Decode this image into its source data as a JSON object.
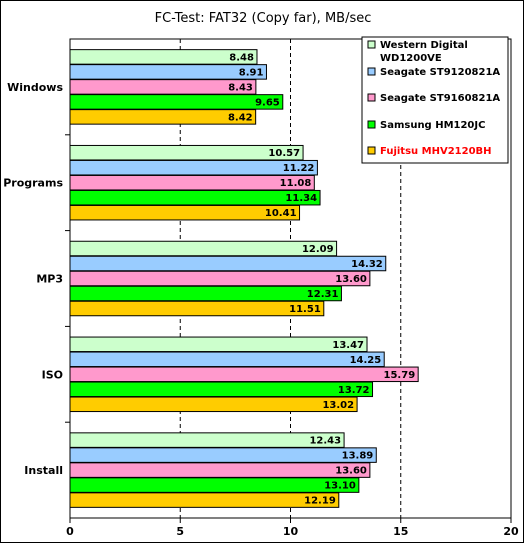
{
  "chart_data": {
    "type": "bar",
    "orientation": "horizontal",
    "title": "FC-Test: FAT32 (Copy far), MB/sec",
    "categories": [
      "Windows",
      "Programs",
      "MP3",
      "ISO",
      "Install"
    ],
    "series": [
      {
        "name": "Western Digital WD1200VE",
        "name_lines": [
          "Western Digital",
          "WD1200VE"
        ],
        "color": "#ccffcc",
        "values": [
          8.48,
          10.57,
          12.09,
          13.47,
          12.43
        ]
      },
      {
        "name": "Seagate ST9120821A",
        "name_lines": [
          "Seagate ST9120821A"
        ],
        "color": "#99ccff",
        "values": [
          8.91,
          11.22,
          14.32,
          14.25,
          13.89
        ]
      },
      {
        "name": "Seagate ST9160821A",
        "name_lines": [
          "Seagate ST9160821A"
        ],
        "color": "#ff99cc",
        "values": [
          8.43,
          11.08,
          13.6,
          15.79,
          13.6
        ]
      },
      {
        "name": "Samsung HM120JC",
        "name_lines": [
          "Samsung HM120JC"
        ],
        "color": "#00ff00",
        "values": [
          9.65,
          11.34,
          12.31,
          13.72,
          13.1
        ]
      },
      {
        "name": "Fujitsu MHV2120BH",
        "name_lines": [
          "Fujitsu MHV2120BH"
        ],
        "color": "#ffcc00",
        "text_color": "#ff0000",
        "values": [
          8.42,
          10.41,
          11.51,
          13.02,
          12.19
        ]
      }
    ],
    "value_labels": [
      [
        "8.48",
        "10.57",
        "12.09",
        "13.47",
        "12.43"
      ],
      [
        "8.91",
        "11.22",
        "14.32",
        "14.25",
        "13.89"
      ],
      [
        "8.43",
        "11.08",
        "13.60",
        "15.79",
        "13.60"
      ],
      [
        "9.65",
        "11.34",
        "12.31",
        "13.72",
        "13.10"
      ],
      [
        "8.42",
        "10.41",
        "11.51",
        "13.02",
        "12.19"
      ]
    ],
    "xlim": [
      0,
      20
    ],
    "xticks": [
      0,
      5,
      10,
      15,
      20
    ],
    "xlabel": "",
    "ylabel": "",
    "grid": "vertical dashed",
    "legend_position": "top-right"
  }
}
